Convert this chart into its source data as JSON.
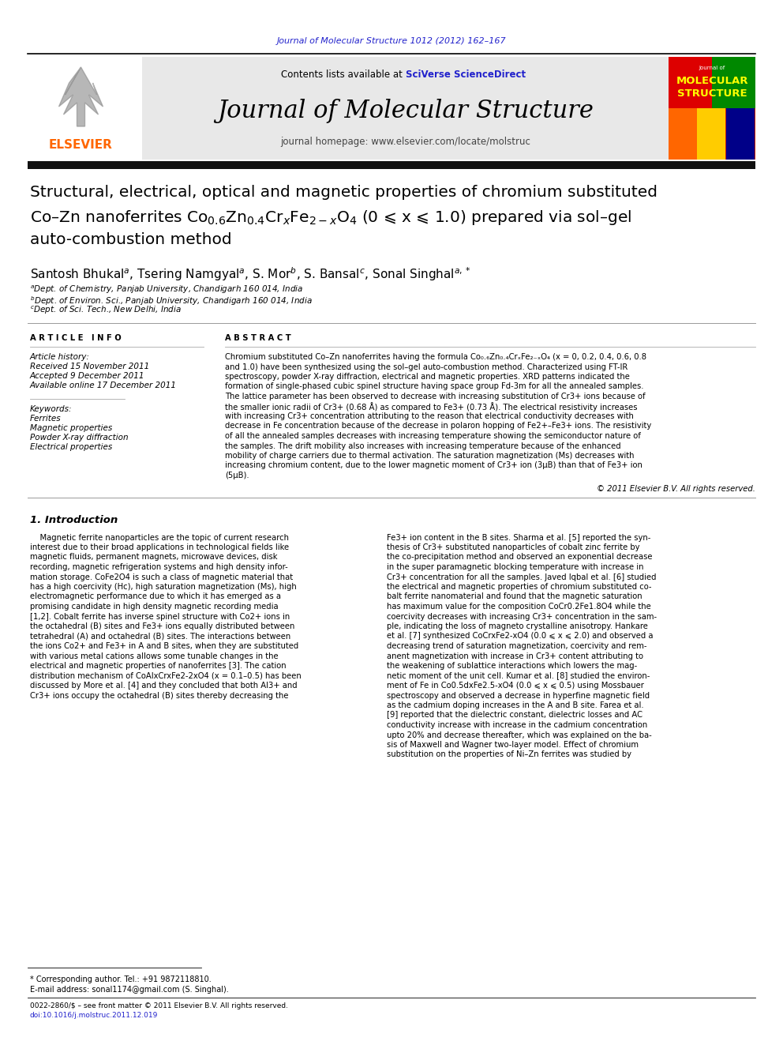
{
  "page_background": "#ffffff",
  "header_link_color": "#2222cc",
  "header_cite": "Journal of Molecular Structure 1012 (2012) 162–167",
  "journal_title": "Journal of Molecular Structure",
  "journal_homepage": "journal homepage: www.elsevier.com/locate/molstruc",
  "contents_text": "Contents lists available at ",
  "sciverse_text": "SciVerse ScienceDirect",
  "elsevier_color": "#FF6600",
  "header_bg": "#e8e8e8",
  "dark_bar_color": "#111111",
  "article_title_line1": "Structural, electrical, optical and magnetic properties of chromium substituted",
  "article_title_line2": "Co–Zn nanoferrites Co$_{0.6}$Zn$_{0.4}$Cr$_x$Fe$_{2-x}$O$_4$ (0 ⩽ x ⩽ 1.0) prepared via sol–gel",
  "article_title_line3": "auto-combustion method",
  "received": "Received 15 November 2011",
  "accepted": "Accepted 9 December 2011",
  "available": "Available online 17 December 2011",
  "keywords": [
    "Ferrites",
    "Magnetic properties",
    "Powder X-ray diffraction",
    "Electrical properties"
  ],
  "abstract_lines": [
    "Chromium substituted Co–Zn nanoferrites having the formula Co₀.₆Zn₀.₄CrₓFe₂₋ₓO₄ (x = 0, 0.2, 0.4, 0.6, 0.8",
    "and 1.0) have been synthesized using the sol–gel auto-combustion method. Characterized using FT-IR",
    "spectroscopy, powder X-ray diffraction, electrical and magnetic properties. XRD patterns indicated the",
    "formation of single-phased cubic spinel structure having space group Fd-3m for all the annealed samples.",
    "The lattice parameter has been observed to decrease with increasing substitution of Cr3+ ions because of",
    "the smaller ionic radii of Cr3+ (0.68 Å) as compared to Fe3+ (0.73 Å). The electrical resistivity increases",
    "with increasing Cr3+ concentration attributing to the reason that electrical conductivity decreases with",
    "decrease in Fe concentration because of the decrease in polaron hopping of Fe2+–Fe3+ ions. The resistivity",
    "of all the annealed samples decreases with increasing temperature showing the semiconductor nature of",
    "the samples. The drift mobility also increases with increasing temperature because of the enhanced",
    "mobility of charge carriers due to thermal activation. The saturation magnetization (Ms) decreases with",
    "increasing chromium content, due to the lower magnetic moment of Cr3+ ion (3μB) than that of Fe3+ ion",
    "(5μB)."
  ],
  "copyright": "© 2011 Elsevier B.V. All rights reserved.",
  "intro_left_lines": [
    "    Magnetic ferrite nanoparticles are the topic of current research",
    "interest due to their broad applications in technological fields like",
    "magnetic fluids, permanent magnets, microwave devices, disk",
    "recording, magnetic refrigeration systems and high density infor-",
    "mation storage. CoFe2O4 is such a class of magnetic material that",
    "has a high coercivity (Hc), high saturation magnetization (Ms), high",
    "electromagnetic performance due to which it has emerged as a",
    "promising candidate in high density magnetic recording media",
    "[1,2]. Cobalt ferrite has inverse spinel structure with Co2+ ions in",
    "the octahedral (B) sites and Fe3+ ions equally distributed between",
    "tetrahedral (A) and octahedral (B) sites. The interactions between",
    "the ions Co2+ and Fe3+ in A and B sites, when they are substituted",
    "with various metal cations allows some tunable changes in the",
    "electrical and magnetic properties of nanoferrites [3]. The cation",
    "distribution mechanism of CoAlxCrxFe2-2xO4 (x = 0.1–0.5) has been",
    "discussed by More et al. [4] and they concluded that both Al3+ and",
    "Cr3+ ions occupy the octahedral (B) sites thereby decreasing the"
  ],
  "intro_right_lines": [
    "Fe3+ ion content in the B sites. Sharma et al. [5] reported the syn-",
    "thesis of Cr3+ substituted nanoparticles of cobalt zinc ferrite by",
    "the co-precipitation method and observed an exponential decrease",
    "in the super paramagnetic blocking temperature with increase in",
    "Cr3+ concentration for all the samples. Javed Iqbal et al. [6] studied",
    "the electrical and magnetic properties of chromium substituted co-",
    "balt ferrite nanomaterial and found that the magnetic saturation",
    "has maximum value for the composition CoCr0.2Fe1.8O4 while the",
    "coercivity decreases with increasing Cr3+ concentration in the sam-",
    "ple, indicating the loss of magneto crystalline anisotropy. Hankare",
    "et al. [7] synthesized CoCrxFe2-xO4 (0.0 ⩽ x ⩽ 2.0) and observed a",
    "decreasing trend of saturation magnetization, coercivity and rem-",
    "anent magnetization with increase in Cr3+ content attributing to",
    "the weakening of sublattice interactions which lowers the mag-",
    "netic moment of the unit cell. Kumar et al. [8] studied the environ-",
    "ment of Fe in Co0.5dxFe2.5-xO4 (0.0 ⩽ x ⩽ 0.5) using Mossbauer",
    "spectroscopy and observed a decrease in hyperfine magnetic field",
    "as the cadmium doping increases in the A and B site. Farea et al.",
    "[9] reported that the dielectric constant, dielectric losses and AC",
    "conductivity increase with increase in the cadmium concentration",
    "upto 20% and decrease thereafter, which was explained on the ba-",
    "sis of Maxwell and Wagner two-layer model. Effect of chromium",
    "substitution on the properties of Ni–Zn ferrites was studied by"
  ],
  "footnote_star": "* Corresponding author. Tel.: +91 9872118810.",
  "footnote_email": "E-mail address: sonal1174@gmail.com (S. Singhal).",
  "issn_line": "0022-2860/$ – see front matter © 2011 Elsevier B.V. All rights reserved.",
  "doi_line": "doi:10.1016/j.molstruc.2011.12.019"
}
